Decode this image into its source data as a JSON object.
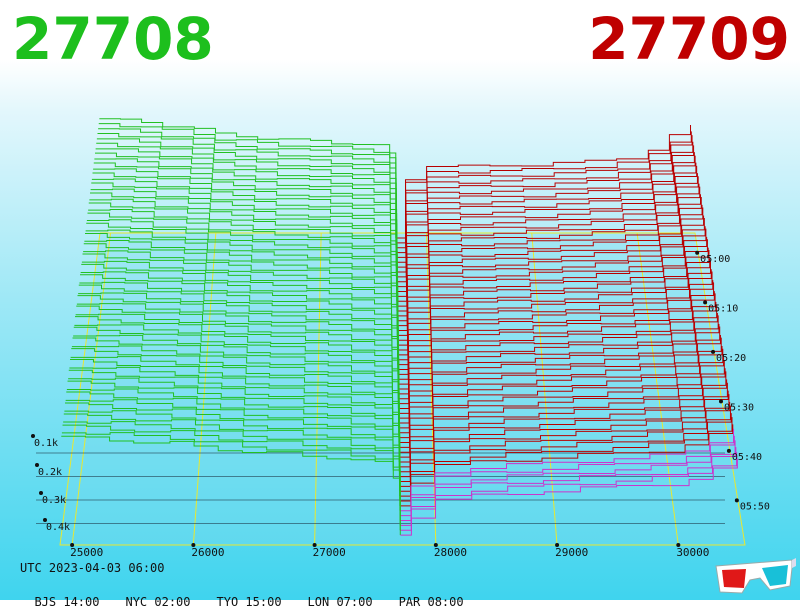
{
  "header": {
    "bid_price": "27708",
    "ask_price": "27709",
    "bid_color": "#1dbf1d",
    "ask_color": "#bf0000"
  },
  "footer": {
    "utc": "UTC 2023-04-03 06:00",
    "zones": [
      {
        "label": "BJS 14:00"
      },
      {
        "label": "NYC 02:00"
      },
      {
        "label": "TYO 15:00"
      },
      {
        "label": "LON 07:00"
      },
      {
        "label": "PAR 08:00"
      }
    ]
  },
  "icons": {
    "glasses": "3d-glasses-icon"
  },
  "chart_data": {
    "type": "area",
    "title": "",
    "x_ticks": [
      "25000",
      "26000",
      "27000",
      "28000",
      "29000",
      "30000"
    ],
    "x_tick_values": [
      25000,
      26000,
      27000,
      28000,
      29000,
      30000
    ],
    "x_range": [
      24900,
      30550
    ],
    "y_ticks": [
      "0.1k",
      "0.2k",
      "0.3k",
      "0.4k"
    ],
    "y_tick_values": [
      100,
      200,
      300,
      400
    ],
    "time_ticks": [
      "05:00",
      "05:10",
      "05:20",
      "05:30",
      "05:40",
      "05:50"
    ],
    "time_tick_values": [
      0,
      10,
      20,
      30,
      40,
      50
    ],
    "time_range": [
      -4,
      59
    ],
    "grid": true,
    "series": [
      {
        "side": "bid",
        "color": "#22c022",
        "price": [
          24900,
          25100,
          25300,
          25500,
          25800,
          26000,
          26200,
          26400,
          26600,
          26900,
          27100,
          27300,
          27500,
          27650,
          27708
        ],
        "depth_last": [
          420,
          415,
          410,
          400,
          395,
          380,
          370,
          355,
          350,
          340,
          335,
          320,
          310,
          250,
          0
        ],
        "depth_first": [
          700,
          690,
          680,
          660,
          640,
          610,
          600,
          585,
          575,
          570,
          560,
          550,
          540,
          500,
          0
        ]
      },
      {
        "side": "ask",
        "color": "#b80000",
        "current_color": "#cc33cc",
        "price": [
          27709,
          27800,
          28000,
          28300,
          28600,
          28900,
          29200,
          29500,
          29800,
          30100,
          30300,
          30500
        ],
        "depth_last": [
          0,
          80,
          150,
          170,
          180,
          190,
          200,
          210,
          220,
          240,
          280,
          330
        ],
        "depth_first": [
          0,
          350,
          420,
          420,
          425,
          430,
          440,
          450,
          470,
          520,
          600,
          660
        ]
      }
    ]
  }
}
